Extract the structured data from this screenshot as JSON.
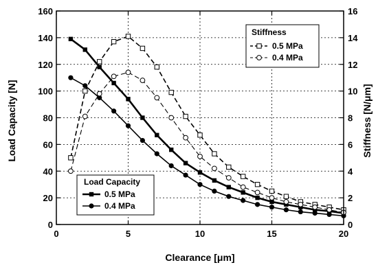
{
  "chart_data": {
    "type": "line",
    "xlabel": "Clearance [μm]",
    "ylabel": "Load Capacity [N]",
    "y2label": "Stiffness [N/μm]",
    "xlim": [
      0,
      20
    ],
    "ylim": [
      0,
      160
    ],
    "y2lim": [
      0,
      16
    ],
    "x_ticks": [
      0,
      5,
      10,
      15,
      20
    ],
    "y_ticks": [
      0,
      20,
      40,
      60,
      80,
      100,
      120,
      140,
      160
    ],
    "y2_ticks": [
      0,
      2,
      4,
      6,
      8,
      10,
      12,
      14,
      16
    ],
    "grid": true,
    "x": [
      1,
      2,
      3,
      4,
      5,
      6,
      7,
      8,
      9,
      10,
      11,
      12,
      13,
      14,
      15,
      16,
      17,
      18,
      19,
      20
    ],
    "legends": [
      {
        "title": "Load Capacity",
        "placement": "bottom-left",
        "series_names": [
          "0.5 MPa",
          "0.4 MPa"
        ]
      },
      {
        "title": "Stiffness",
        "placement": "top-right",
        "series_names": [
          "0.5 MPa",
          "0.4 MPa"
        ]
      }
    ],
    "series": [
      {
        "name": "0.5 MPa",
        "group": "Load Capacity",
        "axis": "left",
        "marker": "filled-square",
        "line": "solid",
        "line_width": "thick",
        "color": "#000000",
        "values": [
          139,
          131,
          118,
          106,
          94,
          80,
          67,
          56,
          46,
          39,
          33,
          28,
          24,
          20,
          17,
          15,
          13,
          11,
          10,
          8.5
        ]
      },
      {
        "name": "0.4 MPa",
        "group": "Load Capacity",
        "axis": "left",
        "marker": "filled-circle",
        "line": "solid",
        "line_width": "normal",
        "color": "#000000",
        "values": [
          110,
          104,
          95,
          85,
          74,
          63,
          53,
          44,
          37,
          30,
          25,
          21,
          18,
          15,
          13,
          11,
          9.5,
          8.5,
          7.5,
          6.5
        ]
      },
      {
        "name": "0.5 MPa",
        "group": "Stiffness",
        "axis": "right",
        "marker": "open-square",
        "line": "dashed",
        "line_width": "normal",
        "color": "#000000",
        "values": [
          5.0,
          10.0,
          12.2,
          13.7,
          14.1,
          13.2,
          11.8,
          9.9,
          8.1,
          6.7,
          5.3,
          4.3,
          3.6,
          3.0,
          2.5,
          2.1,
          1.7,
          1.5,
          1.3,
          1.1
        ]
      },
      {
        "name": "0.4 MPa",
        "group": "Stiffness",
        "axis": "right",
        "marker": "open-circle",
        "line": "dashed",
        "line_width": "thin",
        "color": "#000000",
        "values": [
          4.0,
          8.1,
          9.8,
          11.1,
          11.4,
          10.8,
          9.5,
          8.0,
          6.5,
          5.1,
          4.2,
          3.5,
          2.8,
          2.4,
          2.0,
          1.7,
          1.5,
          1.3,
          1.1,
          0.9
        ]
      }
    ]
  }
}
